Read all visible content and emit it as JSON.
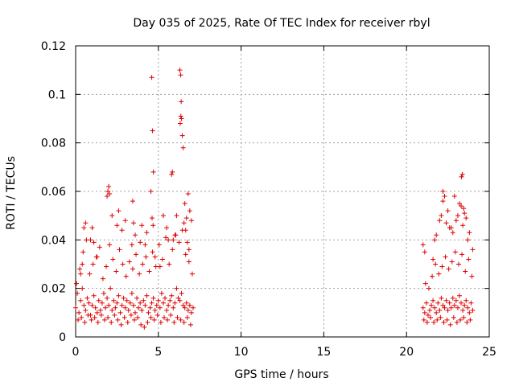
{
  "chart_data": {
    "type": "scatter",
    "title": "Day 035 of 2025, Rate Of TEC Index for receiver rbyl",
    "xlabel": "GPS time / hours",
    "ylabel": "ROTI / TECUs",
    "xlim": [
      0,
      25
    ],
    "ylim": [
      0,
      0.12
    ],
    "xticks": [
      0,
      5,
      10,
      15,
      20,
      25
    ],
    "xtick_labels": [
      "0",
      "5",
      "10",
      "15",
      "20",
      "25"
    ],
    "yticks": [
      0,
      0.02,
      0.04,
      0.06,
      0.08,
      0.1,
      0.12
    ],
    "ytick_labels": [
      "0",
      "0.02",
      "0.04",
      "0.06",
      "0.08",
      "0.1",
      "0.12"
    ],
    "grid": true,
    "marker": "+",
    "series": [
      {
        "name": "ROTI",
        "color": "#dd0000",
        "x": [
          0.0,
          0.1,
          0.2,
          0.3,
          0.4,
          0.5,
          0.6,
          0.7,
          0.8,
          0.9,
          1.0,
          1.1,
          1.2,
          1.3,
          1.4,
          1.5,
          1.6,
          1.7,
          1.8,
          1.9,
          2.0,
          2.1,
          2.2,
          2.3,
          2.4,
          2.5,
          2.6,
          2.7,
          2.8,
          2.9,
          3.0,
          3.1,
          3.2,
          3.3,
          3.4,
          3.5,
          3.6,
          3.7,
          3.8,
          3.9,
          4.0,
          4.1,
          4.2,
          4.3,
          4.4,
          4.5,
          4.6,
          4.7,
          4.8,
          4.9,
          5.0,
          5.1,
          5.2,
          5.3,
          5.4,
          5.5,
          5.6,
          5.7,
          5.8,
          5.9,
          6.0,
          6.1,
          6.2,
          6.3,
          6.4,
          6.5,
          6.6,
          6.7,
          6.8,
          6.9,
          7.0,
          7.1,
          0.05,
          0.25,
          0.45,
          0.65,
          0.85,
          1.05,
          1.25,
          1.45,
          1.65,
          1.85,
          2.05,
          2.25,
          2.45,
          2.65,
          2.85,
          3.05,
          3.25,
          3.45,
          3.65,
          3.85,
          4.05,
          4.25,
          4.45,
          4.65,
          4.85,
          5.05,
          5.25,
          5.45,
          5.65,
          5.85,
          6.05,
          6.25,
          6.45,
          6.65,
          6.85,
          7.05,
          0.15,
          0.35,
          0.55,
          0.75,
          0.95,
          1.15,
          1.35,
          1.55,
          1.75,
          1.95,
          2.15,
          2.35,
          2.55,
          2.75,
          2.95,
          3.15,
          3.35,
          3.55,
          3.75,
          3.95,
          4.15,
          4.35,
          4.55,
          4.75,
          4.95,
          5.15,
          5.35,
          5.55,
          5.75,
          5.95,
          6.15,
          6.35,
          6.55,
          6.75,
          6.95,
          0.5,
          0.6,
          0.9,
          1.1,
          1.3,
          1.9,
          2.0,
          2.2,
          2.6,
          3.0,
          3.4,
          3.6,
          4.0,
          4.3,
          4.6,
          4.65,
          4.7,
          4.55,
          5.3,
          5.5,
          5.9,
          6.0,
          6.3,
          6.35,
          6.4,
          6.45,
          6.5,
          6.6,
          6.8,
          6.9,
          7.0,
          6.36,
          6.32,
          6.38,
          4.62,
          4.68,
          5.85,
          5.8,
          3.45,
          1.95,
          2.05,
          6.7,
          1.0,
          0.3,
          0.4,
          2.5,
          2.8,
          3.5,
          3.9,
          4.2,
          4.8,
          5.1,
          5.6,
          6.1,
          6.55,
          6.65,
          6.75,
          6.85,
          21.0,
          21.1,
          21.2,
          21.3,
          21.4,
          21.5,
          21.6,
          21.7,
          21.8,
          21.9,
          22.0,
          22.1,
          22.2,
          22.3,
          22.4,
          22.5,
          22.6,
          22.7,
          22.8,
          22.9,
          23.0,
          23.1,
          23.2,
          23.3,
          23.4,
          23.5,
          23.6,
          23.7,
          23.8,
          23.9,
          24.0,
          21.05,
          21.25,
          21.45,
          21.65,
          21.85,
          22.05,
          22.25,
          22.45,
          22.65,
          22.85,
          23.05,
          23.25,
          23.45,
          23.65,
          23.85,
          21.15,
          21.35,
          21.55,
          21.75,
          21.95,
          22.15,
          22.35,
          22.55,
          22.75,
          22.95,
          23.15,
          23.35,
          23.55,
          23.75,
          23.95,
          21.0,
          21.1,
          21.6,
          21.8,
          22.0,
          22.1,
          22.2,
          22.3,
          22.5,
          22.6,
          22.8,
          23.0,
          23.1,
          23.3,
          23.4,
          23.5,
          23.6,
          23.8,
          24.0,
          23.32,
          23.38,
          22.9,
          22.2,
          21.7,
          23.2,
          23.45,
          22.4,
          22.7,
          23.7
        ],
        "y": [
          0.012,
          0.018,
          0.01,
          0.015,
          0.02,
          0.013,
          0.011,
          0.016,
          0.014,
          0.009,
          0.013,
          0.017,
          0.012,
          0.01,
          0.015,
          0.011,
          0.014,
          0.018,
          0.012,
          0.016,
          0.013,
          0.02,
          0.011,
          0.015,
          0.012,
          0.014,
          0.017,
          0.01,
          0.013,
          0.016,
          0.012,
          0.015,
          0.011,
          0.014,
          0.018,
          0.013,
          0.01,
          0.016,
          0.012,
          0.014,
          0.011,
          0.015,
          0.013,
          0.017,
          0.01,
          0.012,
          0.014,
          0.016,
          0.011,
          0.013,
          0.015,
          0.012,
          0.018,
          0.014,
          0.016,
          0.011,
          0.013,
          0.015,
          0.017,
          0.012,
          0.014,
          0.02,
          0.016,
          0.015,
          0.018,
          0.013,
          0.012,
          0.014,
          0.011,
          0.013,
          0.01,
          0.012,
          0.022,
          0.028,
          0.035,
          0.04,
          0.026,
          0.03,
          0.033,
          0.037,
          0.024,
          0.029,
          0.038,
          0.032,
          0.027,
          0.036,
          0.03,
          0.025,
          0.031,
          0.028,
          0.034,
          0.026,
          0.03,
          0.033,
          0.027,
          0.035,
          0.029,
          0.038,
          0.032,
          0.041,
          0.03,
          0.036,
          0.042,
          0.039,
          0.044,
          0.034,
          0.031,
          0.026,
          0.007,
          0.008,
          0.006,
          0.009,
          0.007,
          0.008,
          0.006,
          0.009,
          0.007,
          0.008,
          0.006,
          0.009,
          0.007,
          0.005,
          0.008,
          0.006,
          0.009,
          0.007,
          0.008,
          0.005,
          0.004,
          0.006,
          0.008,
          0.007,
          0.009,
          0.006,
          0.008,
          0.007,
          0.009,
          0.006,
          0.008,
          0.007,
          0.006,
          0.008,
          0.005,
          0.045,
          0.047,
          0.04,
          0.039,
          0.033,
          0.058,
          0.062,
          0.05,
          0.052,
          0.048,
          0.038,
          0.042,
          0.046,
          0.043,
          0.107,
          0.085,
          0.068,
          0.06,
          0.05,
          0.045,
          0.04,
          0.042,
          0.11,
          0.108,
          0.09,
          0.083,
          0.078,
          0.055,
          0.059,
          0.052,
          0.048,
          0.091,
          0.088,
          0.097,
          0.049,
          0.046,
          0.068,
          0.067,
          0.056,
          0.06,
          0.059,
          0.049,
          0.045,
          0.026,
          0.03,
          0.046,
          0.044,
          0.047,
          0.039,
          0.038,
          0.033,
          0.029,
          0.04,
          0.05,
          0.047,
          0.044,
          0.039,
          0.036,
          0.012,
          0.01,
          0.014,
          0.009,
          0.011,
          0.013,
          0.015,
          0.012,
          0.01,
          0.014,
          0.011,
          0.016,
          0.013,
          0.012,
          0.015,
          0.011,
          0.014,
          0.012,
          0.016,
          0.013,
          0.015,
          0.012,
          0.017,
          0.014,
          0.011,
          0.013,
          0.015,
          0.012,
          0.01,
          0.014,
          0.011,
          0.007,
          0.006,
          0.008,
          0.006,
          0.007,
          0.008,
          0.006,
          0.007,
          0.005,
          0.008,
          0.006,
          0.007,
          0.008,
          0.006,
          0.007,
          0.022,
          0.02,
          0.025,
          0.03,
          0.026,
          0.029,
          0.033,
          0.028,
          0.031,
          0.035,
          0.03,
          0.034,
          0.027,
          0.032,
          0.025,
          0.038,
          0.035,
          0.032,
          0.042,
          0.048,
          0.05,
          0.056,
          0.058,
          0.052,
          0.045,
          0.043,
          0.048,
          0.05,
          0.054,
          0.046,
          0.051,
          0.049,
          0.043,
          0.036,
          0.066,
          0.067,
          0.058,
          0.06,
          0.04,
          0.055,
          0.053,
          0.047,
          0.045,
          0.04
        ]
      }
    ]
  }
}
